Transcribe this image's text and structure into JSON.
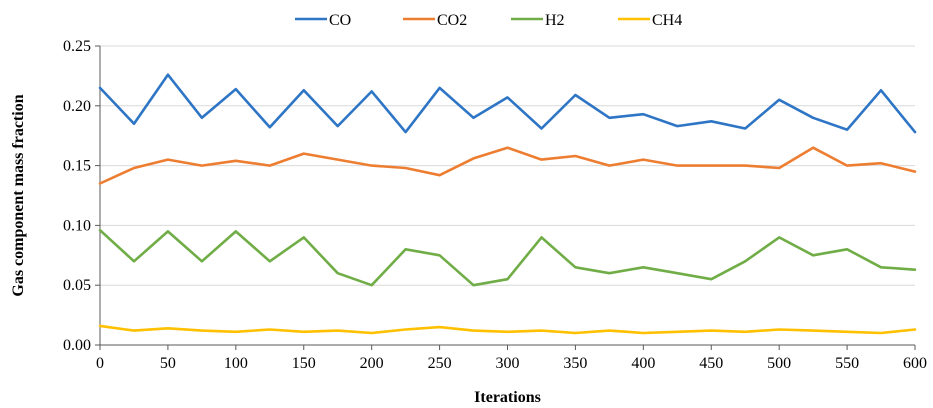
{
  "chart_data": {
    "type": "line",
    "title": "",
    "xlabel": "Iterations",
    "ylabel": "Gas component mass fraction",
    "xlim": [
      0,
      600
    ],
    "ylim": [
      0,
      0.25
    ],
    "xticks": [
      0,
      50,
      100,
      150,
      200,
      250,
      300,
      350,
      400,
      450,
      500,
      550,
      600
    ],
    "yticks": [
      0,
      0.05,
      0.1,
      0.15,
      0.2,
      0.25
    ],
    "ytick_labels": [
      "0.00",
      "0.05",
      "0.10",
      "0.15",
      "0.20",
      "0.25"
    ],
    "grid": "horizontal",
    "legend_position": "top",
    "x": [
      0,
      25,
      50,
      75,
      100,
      125,
      150,
      175,
      200,
      225,
      250,
      275,
      300,
      325,
      350,
      375,
      400,
      425,
      450,
      475,
      500,
      525,
      550,
      575,
      600
    ],
    "series": [
      {
        "name": "CO",
        "color": "#2E75C5",
        "values": [
          0.215,
          0.185,
          0.226,
          0.19,
          0.214,
          0.182,
          0.213,
          0.183,
          0.212,
          0.178,
          0.215,
          0.19,
          0.207,
          0.181,
          0.209,
          0.19,
          0.193,
          0.183,
          0.187,
          0.181,
          0.205,
          0.19,
          0.18,
          0.213,
          0.178
        ]
      },
      {
        "name": "CO2",
        "color": "#ED7D31",
        "values": [
          0.135,
          0.148,
          0.155,
          0.15,
          0.154,
          0.15,
          0.16,
          0.155,
          0.15,
          0.148,
          0.142,
          0.156,
          0.165,
          0.155,
          0.158,
          0.15,
          0.155,
          0.15,
          0.15,
          0.15,
          0.148,
          0.165,
          0.15,
          0.152,
          0.145
        ]
      },
      {
        "name": "H2",
        "color": "#70AD47",
        "values": [
          0.096,
          0.07,
          0.095,
          0.07,
          0.095,
          0.07,
          0.09,
          0.06,
          0.05,
          0.08,
          0.075,
          0.05,
          0.055,
          0.09,
          0.065,
          0.06,
          0.065,
          0.06,
          0.055,
          0.07,
          0.09,
          0.075,
          0.08,
          0.065,
          0.063
        ]
      },
      {
        "name": "CH4",
        "color": "#FFC000",
        "values": [
          0.016,
          0.012,
          0.014,
          0.012,
          0.011,
          0.013,
          0.011,
          0.012,
          0.01,
          0.013,
          0.015,
          0.012,
          0.011,
          0.012,
          0.01,
          0.012,
          0.01,
          0.011,
          0.012,
          0.011,
          0.013,
          0.012,
          0.011,
          0.01,
          0.013
        ]
      }
    ]
  }
}
